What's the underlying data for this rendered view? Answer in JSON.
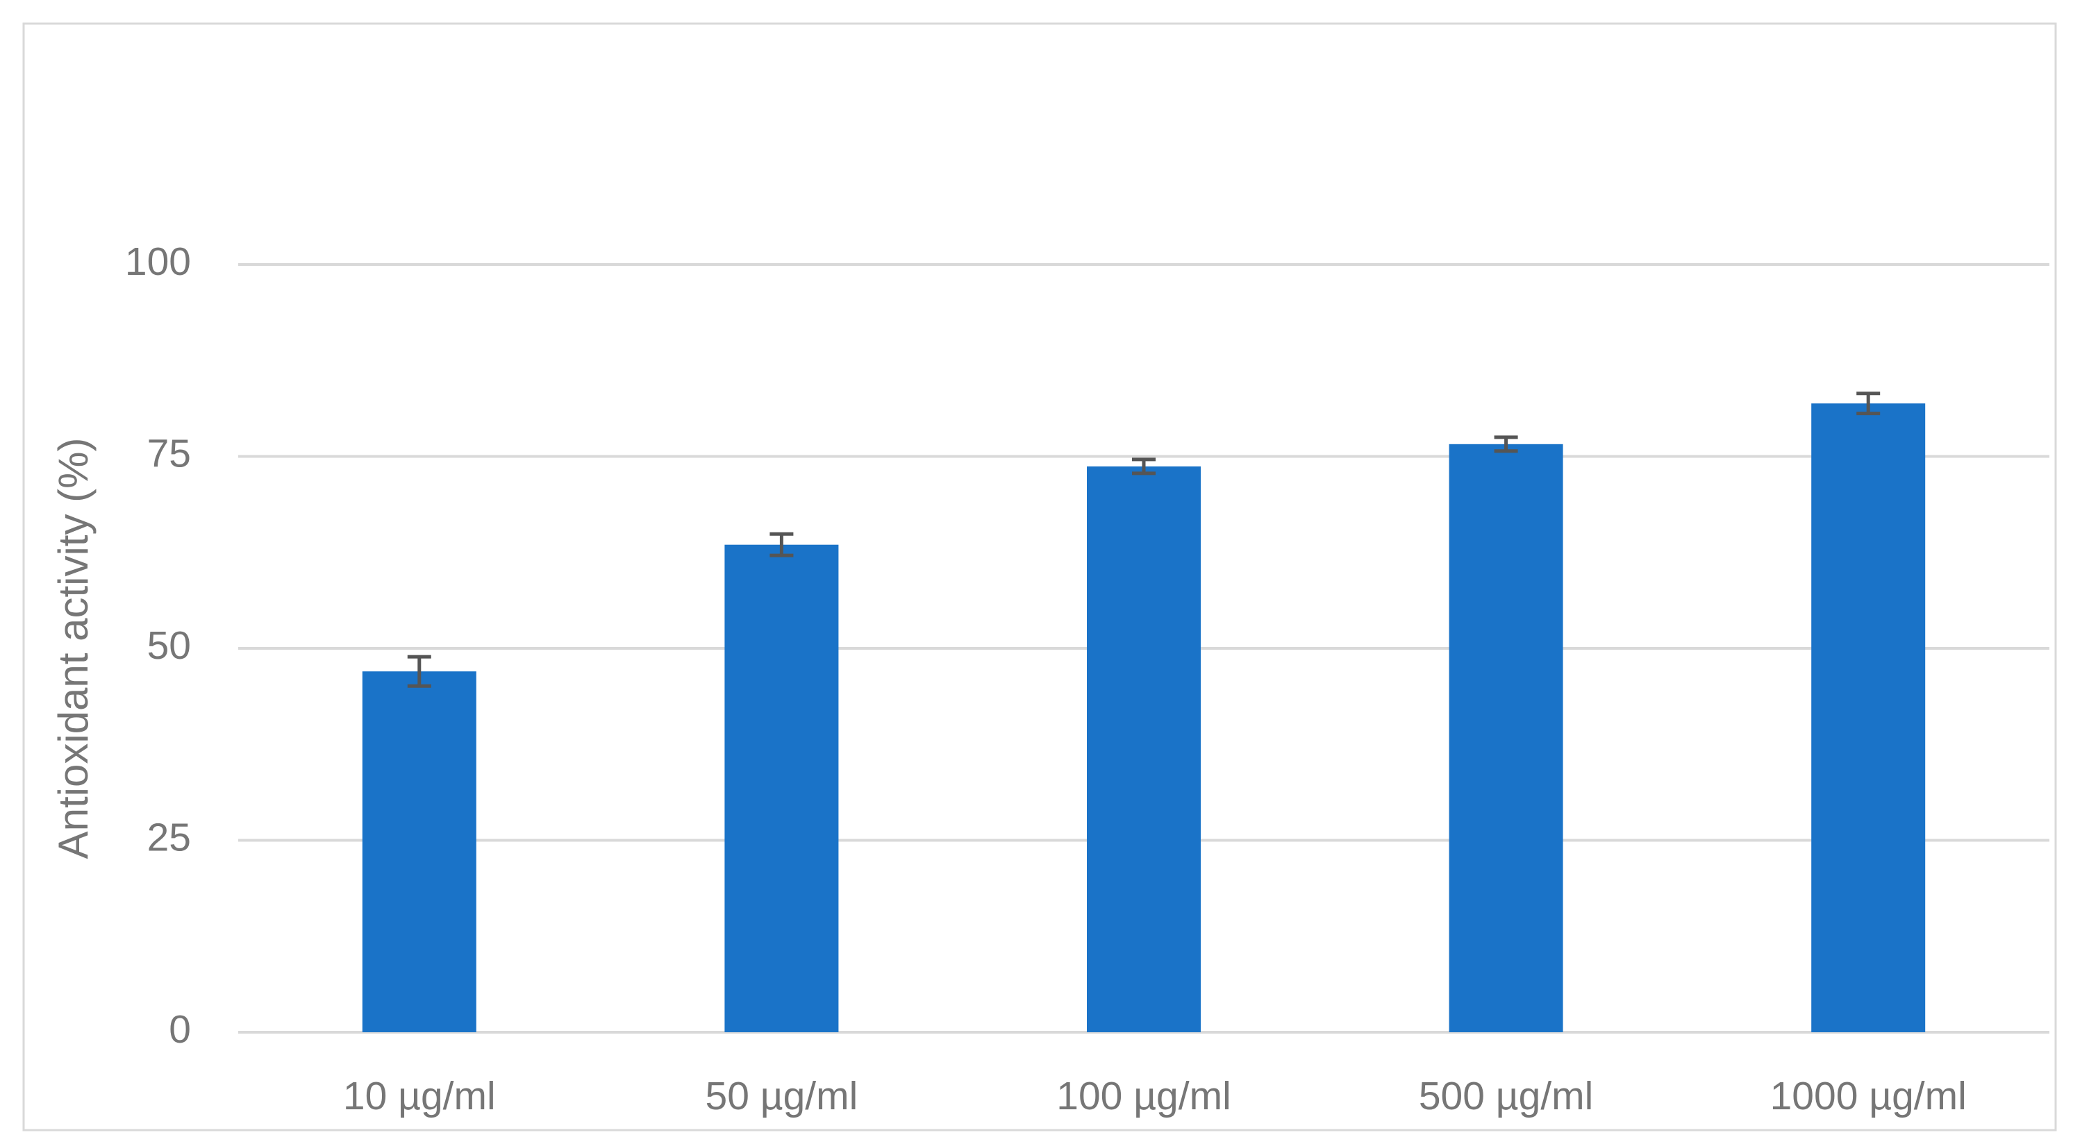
{
  "chart_data": {
    "type": "bar",
    "y_label": "Antioxidant activity (%)",
    "categories": [
      "10 µg/ml",
      "50 µg/ml",
      "100 µg/ml",
      "500 µg/ml",
      "1000 µg/ml"
    ],
    "values": [
      47.0,
      63.5,
      73.7,
      76.6,
      81.9
    ],
    "errors": [
      1.9,
      1.4,
      0.9,
      0.9,
      1.3
    ],
    "color": "#1a73c8",
    "error_color": "#555555",
    "ylim": [
      0,
      100
    ],
    "yticks": [
      0,
      25,
      50,
      75,
      100
    ],
    "grid": true
  }
}
